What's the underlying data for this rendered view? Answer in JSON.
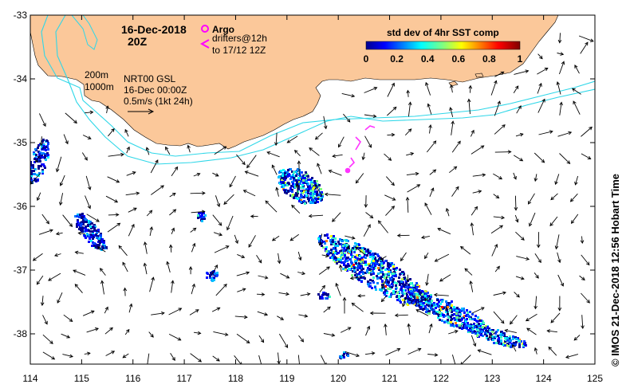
{
  "title": {
    "date": "16-Dec-2018",
    "time": "20Z"
  },
  "argo_legend": {
    "argo_label": "Argo",
    "drifters_line1": "drifters@12h",
    "drifters_line2": "to 17/12 12Z",
    "argo_color": "#ff00ff",
    "drifter_color": "#ff33ff"
  },
  "contour_labels": {
    "iso200": "200m",
    "iso1000": "1000m",
    "contour_color": "#2fd7e8"
  },
  "current_info": {
    "product": "NRT00 GSL",
    "date": "16-Dec 00:00Z",
    "scale": "0.5m/s (1kt 24h)"
  },
  "colorbar": {
    "title": "std dev of 4hr SST comp",
    "ticks": [
      "0",
      "0.2",
      "0.4",
      "0.6",
      "0.8",
      "1"
    ],
    "range": [
      0,
      1
    ],
    "colormap": "jet"
  },
  "axes": {
    "x_ticks": [
      "114",
      "115",
      "116",
      "117",
      "118",
      "119",
      "120",
      "121",
      "122",
      "123",
      "124",
      "125"
    ],
    "y_ticks": [
      "-33",
      "-34",
      "-35",
      "-36",
      "-37",
      "-38"
    ],
    "lon_range": [
      114,
      125
    ],
    "lat_range": [
      -38.5,
      -33
    ]
  },
  "credit": "© IMOS 21-Dec-2018 12:56 Hobart Time",
  "colors": {
    "land": "#fbc89a",
    "ocean": "#ffffff",
    "vectors": "#000000"
  }
}
